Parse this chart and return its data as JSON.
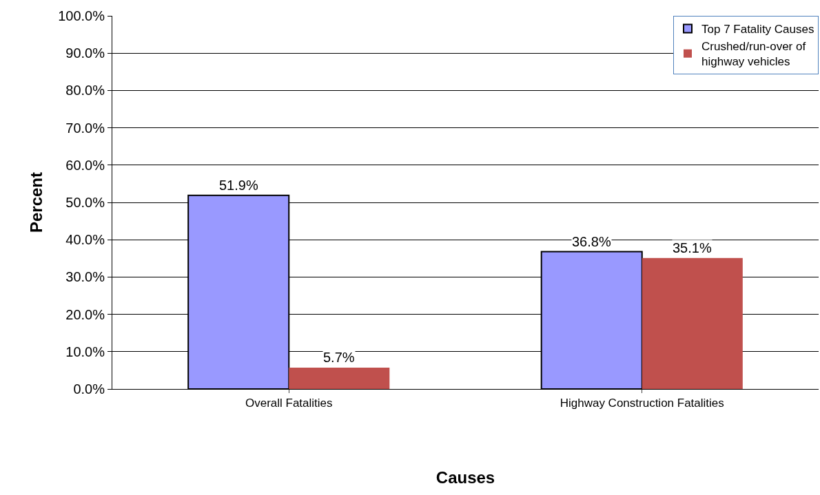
{
  "chart_data": {
    "type": "bar",
    "xlabel": "Causes",
    "ylabel": "Percent",
    "categories": [
      "Overall Fatalities",
      "Highway Construction Fatalities"
    ],
    "series": [
      {
        "name": "Top 7 Fatality Causes",
        "color": "#9999ff",
        "values": [
          51.9,
          36.8
        ],
        "value_labels": [
          "51.9%",
          "36.8%"
        ]
      },
      {
        "name": "Crushed/run-over of highway vehicles",
        "color": "#c0504d",
        "values": [
          5.7,
          35.1
        ],
        "value_labels": [
          "5.7%",
          "35.1%"
        ]
      }
    ],
    "ylim": [
      0,
      100
    ],
    "yticks": [
      {
        "value": 0,
        "label": "0.0%"
      },
      {
        "value": 10,
        "label": "10.0%"
      },
      {
        "value": 20,
        "label": "20.0%"
      },
      {
        "value": 30,
        "label": "30.0%"
      },
      {
        "value": 40,
        "label": "40.0%"
      },
      {
        "value": 50,
        "label": "50.0%"
      },
      {
        "value": 60,
        "label": "60.0%"
      },
      {
        "value": 70,
        "label": "70.0%"
      },
      {
        "value": 80,
        "label": "80.0%"
      },
      {
        "value": 90,
        "label": "90.0%"
      },
      {
        "value": 100,
        "label": "100.0%"
      }
    ],
    "grid": "y",
    "legend": "top right"
  }
}
